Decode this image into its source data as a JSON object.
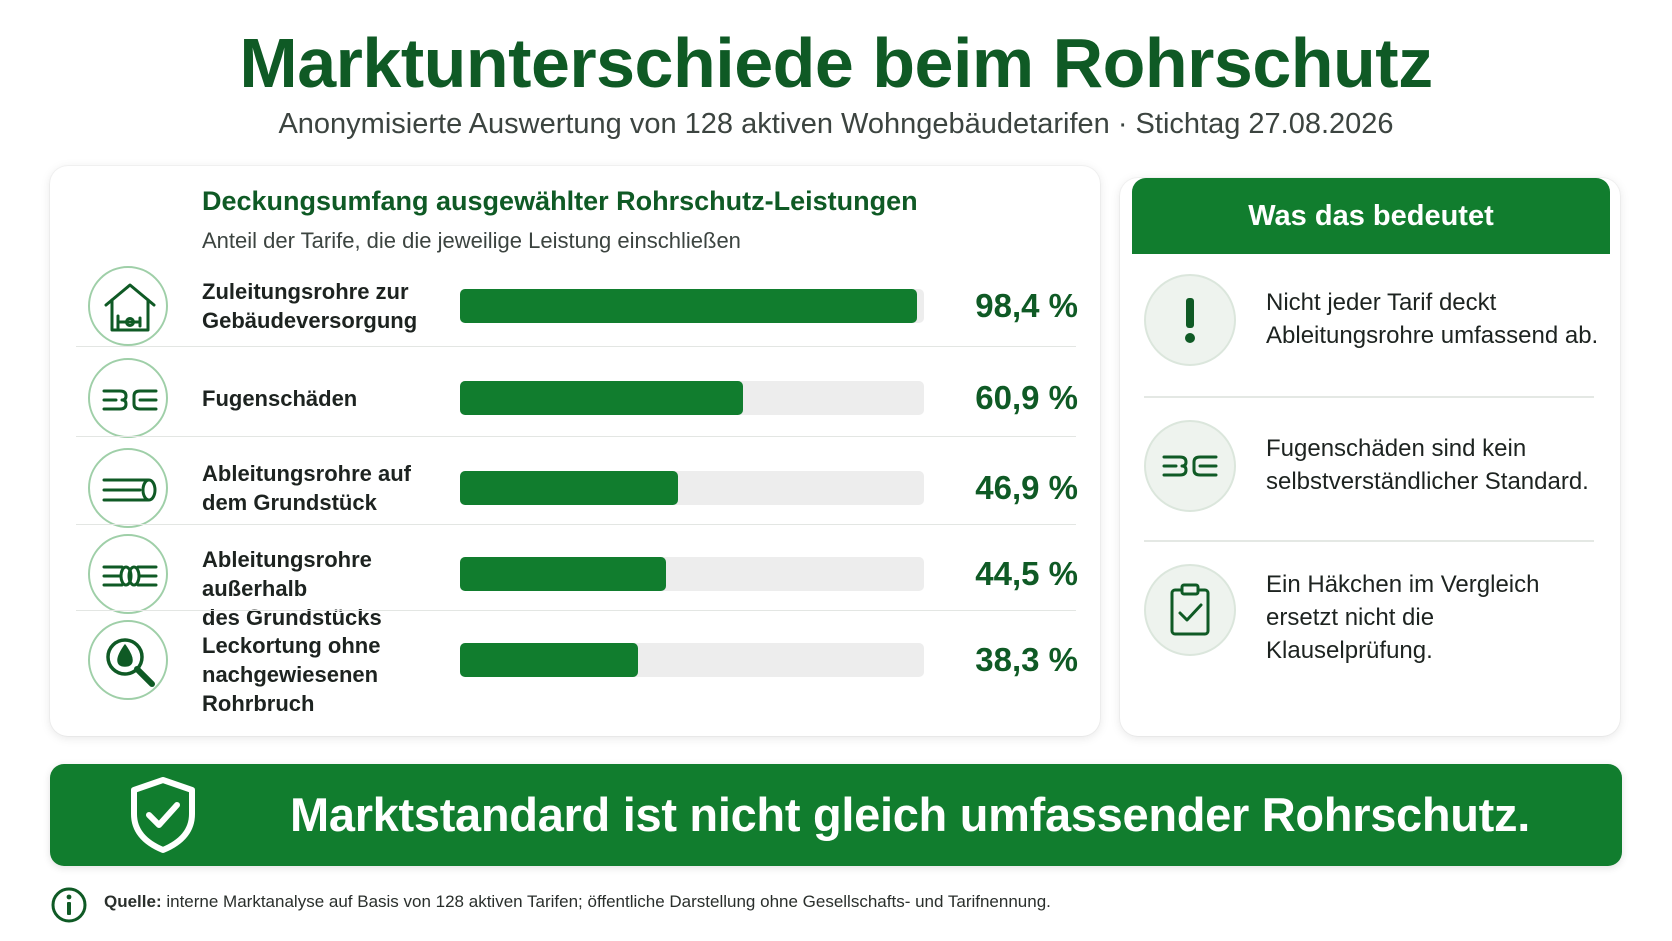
{
  "header": {
    "title": "Marktunterschiede beim Rohrschutz",
    "subtitle": "Anonymisierte Auswertung von 128 aktiven Wohngebäudetarifen · Stichtag 27.08.2026"
  },
  "colors": {
    "brand_green": "#117d2e",
    "dark_green": "#0f5a25",
    "track": "#ededed"
  },
  "chart_data": {
    "type": "bar",
    "orientation": "horizontal",
    "title": "Deckungsumfang ausgewählter Rohrschutz-Leistungen",
    "subtitle": "Anteil der Tarife, die die jeweilige Leistung einschließen",
    "xlim": [
      0,
      100
    ],
    "unit": "%",
    "categories": [
      "Zuleitungsrohre zur Gebäudeversorgung",
      "Fugenschäden",
      "Ableitungsrohre auf dem Grundstück",
      "Ableitungsrohre außerhalb des Grundstücks",
      "Leckortung ohne nachgewiesenen Rohrbruch"
    ],
    "values": [
      98.4,
      60.9,
      46.9,
      44.5,
      38.3
    ],
    "value_labels": [
      "98,4 %",
      "60,9 %",
      "46,9 %",
      "44,5 %",
      "38,3 %"
    ],
    "label_lines": [
      [
        "Zuleitungsrohre zur",
        "Gebäudeversorgung"
      ],
      [
        "Fugenschäden"
      ],
      [
        "Ableitungsrohre auf",
        "dem Grundstück"
      ],
      [
        "Ableitungsrohre außerhalb",
        "des Grundstücks"
      ],
      [
        "Leckortung ohne",
        "nachgewiesenen Rohrbruch"
      ]
    ],
    "icons": [
      "house-pipe-icon",
      "pipe-joint-icon",
      "pipe-icon",
      "pipe-coupling-icon",
      "leak-search-icon"
    ]
  },
  "meaning": {
    "header": "Was das bedeutet",
    "items": [
      {
        "icon": "exclamation-icon",
        "text": "Nicht jeder Tarif deckt Ableitungsrohre umfassend ab."
      },
      {
        "icon": "pipe-joint-icon",
        "text": "Fugenschäden sind kein selbstverständlicher Standard."
      },
      {
        "icon": "clipboard-check-icon",
        "text": "Ein Häkchen im Vergleich ersetzt nicht die Klauselprüfung."
      }
    ]
  },
  "banner": {
    "icon": "shield-check-icon",
    "text": "Marktstandard ist nicht gleich umfassender Rohrschutz."
  },
  "footer": {
    "icon": "info-icon",
    "label": "Quelle:",
    "text": " interne Marktanalyse auf Basis von 128 aktiven Tarifen; öffentliche Darstellung ohne Gesellschafts- und Tarifnennung."
  }
}
